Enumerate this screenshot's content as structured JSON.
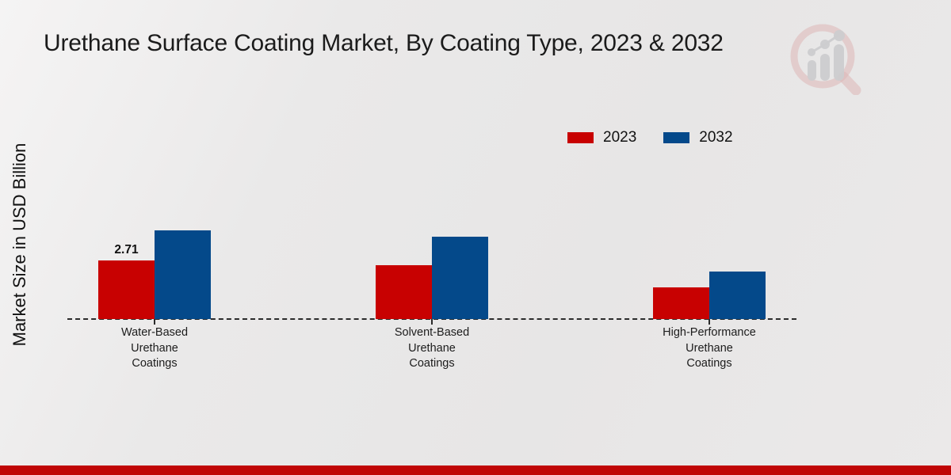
{
  "page": {
    "title": "Urethane Surface Coating Market, By Coating Type, 2023 & 2032",
    "y_axis_label": "Market Size in USD Billion",
    "footer_bar_color": "#c00606",
    "watermark_icon": "magnifier-bar-chart-logo"
  },
  "legend": {
    "items": [
      {
        "label": "2023",
        "color": "#c80101"
      },
      {
        "label": "2032",
        "color": "#04498a"
      }
    ]
  },
  "chart_data": {
    "type": "bar",
    "title": "Urethane Surface Coating Market, By Coating Type, 2023 & 2032",
    "xlabel": "",
    "ylabel": "Market Size in USD Billion",
    "categories": [
      "Water-Based Urethane Coatings",
      "Solvent-Based Urethane Coatings",
      "High-Performance Urethane Coatings"
    ],
    "categories_multiline": [
      [
        "Water-Based",
        "Urethane",
        "Coatings"
      ],
      [
        "Solvent-Based",
        "Urethane",
        "Coatings"
      ],
      [
        "High-Performance",
        "Urethane",
        "Coatings"
      ]
    ],
    "series": [
      {
        "name": "2023",
        "color": "#c80101",
        "values": [
          2.71,
          2.5,
          1.45
        ]
      },
      {
        "name": "2032",
        "color": "#04498a",
        "values": [
          4.1,
          3.8,
          2.2
        ]
      }
    ],
    "value_labels": [
      {
        "series": 0,
        "category": 0,
        "text": "2.71"
      }
    ],
    "baseline": 0,
    "grid": false,
    "legend_position": "top-right"
  }
}
